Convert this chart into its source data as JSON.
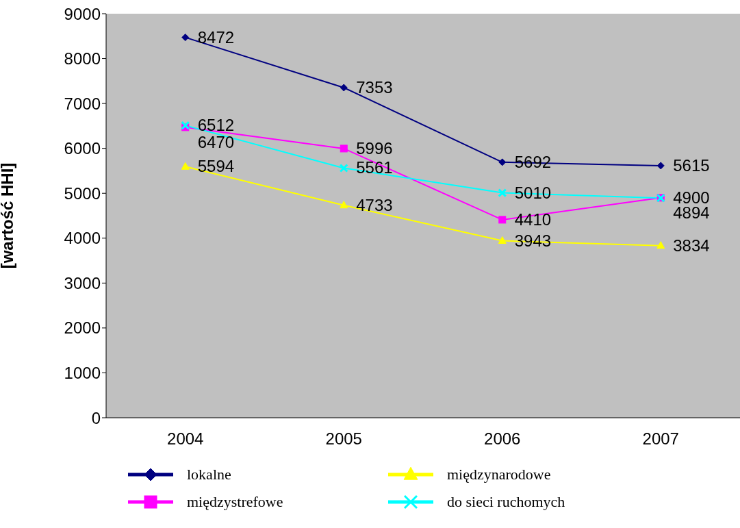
{
  "chart_data": {
    "type": "line",
    "ylabel": "[wartość HHI]",
    "categories": [
      "2004",
      "2005",
      "2006",
      "2007"
    ],
    "series": [
      {
        "name": "lokalne",
        "color": "#000080",
        "marker": "diamond",
        "values": [
          8472,
          7353,
          5692,
          5615
        ]
      },
      {
        "name": "międzystrefowe",
        "color": "#ff00ff",
        "marker": "square",
        "values": [
          6470,
          5996,
          4410,
          4900
        ]
      },
      {
        "name": "międzynarodowe",
        "color": "#ffff00",
        "marker": "triangle",
        "values": [
          5594,
          4733,
          3943,
          3834
        ]
      },
      {
        "name": "do sieci ruchomych",
        "color": "#00ffff",
        "marker": "cross",
        "values": [
          6512,
          5561,
          5010,
          4894
        ]
      }
    ],
    "ylim": [
      0,
      9000
    ],
    "yticks": [
      0,
      1000,
      2000,
      3000,
      4000,
      5000,
      6000,
      7000,
      8000,
      9000
    ],
    "grid": false,
    "legend": "bottom",
    "data_labels": true
  }
}
